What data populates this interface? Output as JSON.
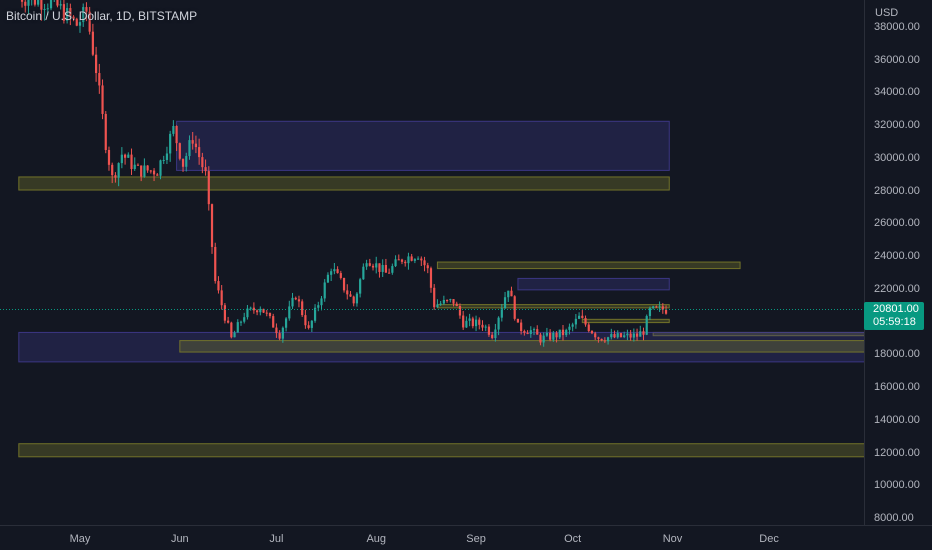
{
  "header": {
    "symbol_title": "Bitcoin / U.S. Dollar, 1D, BITSTAMP"
  },
  "price_axis": {
    "currency": "USD",
    "ticks": [
      "38000.00",
      "36000.00",
      "34000.00",
      "32000.00",
      "30000.00",
      "28000.00",
      "26000.00",
      "24000.00",
      "22000.00",
      "20000.00",
      "18000.00",
      "16000.00",
      "14000.00",
      "12000.00",
      "10000.00",
      "8000.00"
    ],
    "current_price": "20801.00",
    "countdown": "05:59:18"
  },
  "time_axis": {
    "ticks": [
      "May",
      "Jun",
      "Jul",
      "Aug",
      "Sep",
      "Oct",
      "Nov",
      "Dec"
    ]
  },
  "colors": {
    "background": "#131722",
    "up": "#26a69a",
    "down": "#ef5350",
    "supply_zone": "#3f3a8c",
    "support_zone": "#7a7a2a",
    "current_price_badge": "#089981"
  },
  "chart_data": {
    "type": "candlestick",
    "instrument": "Bitcoin / U.S. Dollar",
    "interval": "1D",
    "exchange": "BITSTAMP",
    "ylim": [
      7500,
      39600
    ],
    "last_price": 20801,
    "path": [
      [
        "2022-04-12",
        40000
      ],
      [
        "2022-04-24",
        39500
      ],
      [
        "2022-05-01",
        38200
      ],
      [
        "2022-05-04",
        39000
      ],
      [
        "2022-05-07",
        35500
      ],
      [
        "2022-05-10",
        31000
      ],
      [
        "2022-05-12",
        28800
      ],
      [
        "2022-05-15",
        30300
      ],
      [
        "2022-05-20",
        29300
      ],
      [
        "2022-05-26",
        29300
      ],
      [
        "2022-05-31",
        31800
      ],
      [
        "2022-06-03",
        29700
      ],
      [
        "2022-06-06",
        31300
      ],
      [
        "2022-06-10",
        29000
      ],
      [
        "2022-06-13",
        22500
      ],
      [
        "2022-06-18",
        19000
      ],
      [
        "2022-06-22",
        20500
      ],
      [
        "2022-06-27",
        21000
      ],
      [
        "2022-07-03",
        19300
      ],
      [
        "2022-07-08",
        21700
      ],
      [
        "2022-07-12",
        19500
      ],
      [
        "2022-07-19",
        23400
      ],
      [
        "2022-07-26",
        21200
      ],
      [
        "2022-07-30",
        24000
      ],
      [
        "2022-08-05",
        23000
      ],
      [
        "2022-08-10",
        23900
      ],
      [
        "2022-08-15",
        24200
      ],
      [
        "2022-08-18",
        23200
      ],
      [
        "2022-08-20",
        21100
      ],
      [
        "2022-08-26",
        21300
      ],
      [
        "2022-08-29",
        20000
      ],
      [
        "2022-09-04",
        19900
      ],
      [
        "2022-09-07",
        19300
      ],
      [
        "2022-09-12",
        22200
      ],
      [
        "2022-09-15",
        19700
      ],
      [
        "2022-09-19",
        19500
      ],
      [
        "2022-09-22",
        19000
      ],
      [
        "2022-09-30",
        19400
      ],
      [
        "2022-10-04",
        20300
      ],
      [
        "2022-10-10",
        19100
      ],
      [
        "2022-10-15",
        19100
      ],
      [
        "2022-10-22",
        19200
      ],
      [
        "2022-10-24",
        19500
      ],
      [
        "2022-10-26",
        20700
      ],
      [
        "2022-10-30",
        20801
      ]
    ],
    "zones": [
      {
        "kind": "supply",
        "from": "2022-05-31",
        "to": "2022-10-31",
        "low": 29300,
        "high": 32300
      },
      {
        "kind": "support",
        "from": "2022-04-12",
        "to": "2022-10-31",
        "low": 28100,
        "high": 28900
      },
      {
        "kind": "support",
        "from": "2022-08-20",
        "to": "2022-11-22",
        "low": 23300,
        "high": 23700
      },
      {
        "kind": "supply",
        "from": "2022-09-14",
        "to": "2022-10-31",
        "low": 22000,
        "high": 22700
      },
      {
        "kind": "support",
        "from": "2022-08-20",
        "to": "2022-10-31",
        "low": 20900,
        "high": 21100
      },
      {
        "kind": "support",
        "from": "2022-10-04",
        "to": "2022-10-31",
        "low": 20000,
        "high": 20200
      },
      {
        "kind": "support",
        "from": "2022-10-26",
        "to": "2023-01-05",
        "low": 19200,
        "high": 19400
      },
      {
        "kind": "supply",
        "from": "2022-04-12",
        "to": "2023-01-05",
        "low": 17600,
        "high": 19400
      },
      {
        "kind": "support",
        "from": "2022-06-01",
        "to": "2023-01-05",
        "low": 18200,
        "high": 18900
      },
      {
        "kind": "support",
        "from": "2022-04-12",
        "to": "2023-01-05",
        "low": 11800,
        "high": 12600
      }
    ]
  }
}
